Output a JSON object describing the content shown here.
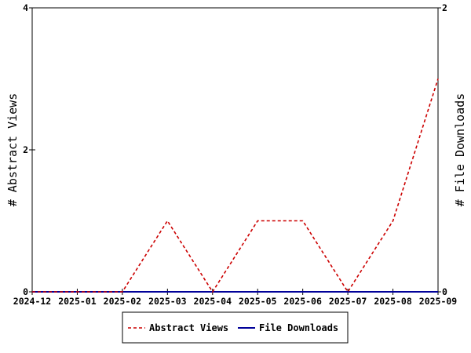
{
  "chart_data": {
    "type": "line",
    "title": "",
    "x": [
      "2024-12",
      "2025-01",
      "2025-02",
      "2025-03",
      "2025-04",
      "2025-05",
      "2025-06",
      "2025-07",
      "2025-08",
      "2025-09"
    ],
    "xlabel": "",
    "ylabel_left": "# Abstract Views",
    "ylabel_right": "# File Downloads",
    "ylim_left": [
      0,
      4
    ],
    "ylim_right": [
      0,
      2
    ],
    "yticks_left": [
      "0",
      "2",
      "4"
    ],
    "yticks_right": [
      "0",
      "2"
    ],
    "grid": false,
    "legend_position": "bottom-center",
    "series": [
      {
        "name": "Abstract Views",
        "axis": "left",
        "color": "#cc0000",
        "style": "dashed",
        "values": [
          0,
          0,
          0,
          1,
          0,
          1,
          1,
          0,
          1,
          3
        ]
      },
      {
        "name": "File Downloads",
        "axis": "right",
        "color": "#000099",
        "style": "solid",
        "values": [
          0,
          0,
          0,
          0,
          0,
          0,
          0,
          0,
          0,
          0
        ]
      }
    ]
  }
}
